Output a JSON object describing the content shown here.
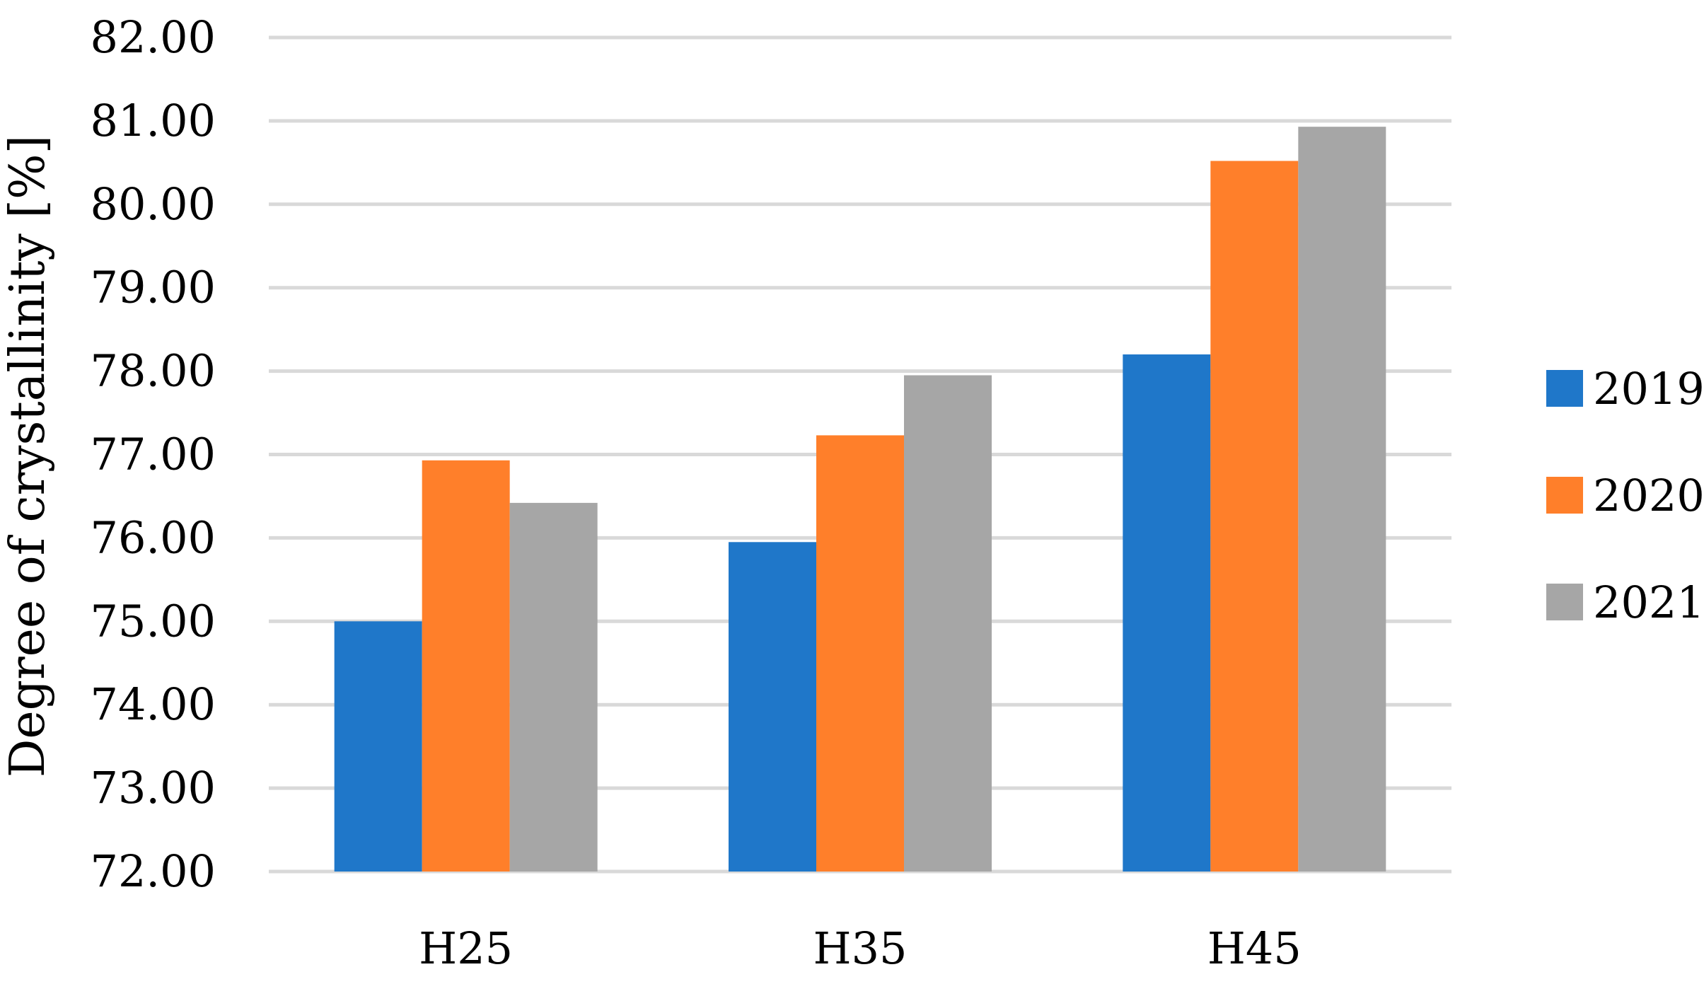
{
  "chart_data": {
    "type": "bar",
    "title": "",
    "xlabel": "",
    "ylabel": "Degree of crystallinity [%]",
    "categories": [
      "H25",
      "H35",
      "H45"
    ],
    "series": [
      {
        "name": "2019",
        "values": [
          75.0,
          75.95,
          78.2
        ],
        "color": "#1f77c9"
      },
      {
        "name": "2020",
        "values": [
          76.93,
          77.23,
          80.52
        ],
        "color": "#ff7f2a"
      },
      {
        "name": "2021",
        "values": [
          76.42,
          77.95,
          80.93
        ],
        "color": "#a6a6a6"
      }
    ],
    "ylim": [
      72,
      82
    ],
    "yticks": [
      "72.00",
      "73.00",
      "74.00",
      "75.00",
      "76.00",
      "77.00",
      "78.00",
      "79.00",
      "80.00",
      "81.00",
      "82.00"
    ],
    "grid": true,
    "legend_position": "right"
  }
}
